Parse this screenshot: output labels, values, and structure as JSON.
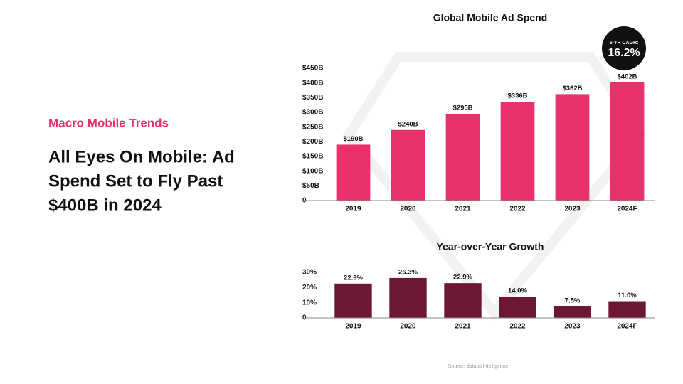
{
  "eyebrow": "Macro Mobile Trends",
  "headline": [
    "All Eyes On Mobile: Ad",
    "Spend Set to Fly Past",
    "$400B in 2024"
  ],
  "source": "Source: data.ai Intelligence",
  "chart_data": [
    {
      "type": "bar",
      "title": "Global Mobile Ad Spend",
      "annotations": [
        "5-YR CAGR:",
        "16.2%"
      ],
      "categories": [
        "2019",
        "2020",
        "2021",
        "2022",
        "2023",
        "2024F"
      ],
      "values": [
        190,
        240,
        295,
        336,
        362,
        402
      ],
      "value_labels": [
        "$190B",
        "$240B",
        "$295B",
        "$336B",
        "$362B",
        "$402B"
      ],
      "color": "#e8306b",
      "ylim": [
        0,
        450
      ],
      "yticks": [
        0,
        {
          "value": 50,
          "label": "$50B"
        },
        {
          "value": 100,
          "label": "$100B"
        },
        {
          "value": 150,
          "label": "$150B"
        },
        {
          "value": 200,
          "label": "$200B"
        },
        {
          "value": 250,
          "label": "$250B"
        },
        {
          "value": 300,
          "label": "$300B"
        },
        {
          "value": 350,
          "label": "$350B"
        },
        {
          "value": 400,
          "label": "$400B"
        },
        {
          "value": 450,
          "label": "$450B"
        }
      ],
      "grid": false
    },
    {
      "type": "bar",
      "title": "Year-over-Year Growth",
      "categories": [
        "2019",
        "2020",
        "2021",
        "2022",
        "2023",
        "2024F"
      ],
      "values": [
        22.6,
        26.3,
        22.9,
        14.0,
        7.5,
        11.0
      ],
      "value_labels": [
        "22.6%",
        "26.3%",
        "22.9%",
        "14.0%",
        "7.5%",
        "11.0%"
      ],
      "color": "#6e1636",
      "ylim": [
        0,
        30
      ],
      "yticks": [
        0,
        {
          "value": 10,
          "label": "10%"
        },
        {
          "value": 20,
          "label": "20%"
        },
        {
          "value": 30,
          "label": "30%"
        }
      ],
      "grid": false
    }
  ]
}
